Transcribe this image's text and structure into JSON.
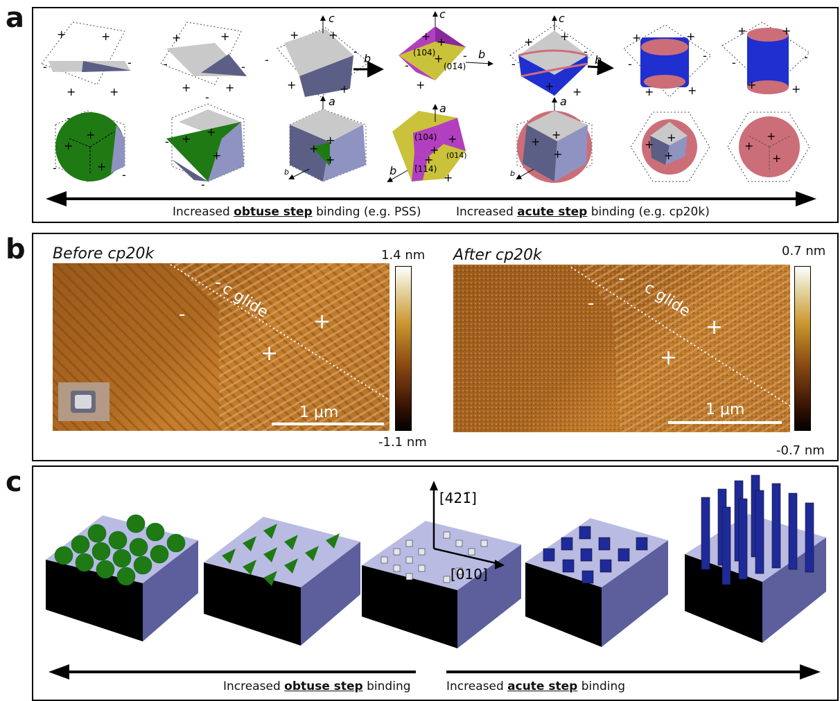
{
  "panels": {
    "a": {
      "letter": "a",
      "axes": {
        "c1": "c",
        "b1": "b",
        "c2": "c",
        "b2": "b",
        "c3": "c",
        "b3": "b",
        "a1": "a",
        "b4": "b",
        "a2": "a",
        "b5": "b",
        "a3": "a",
        "b6": "b"
      },
      "facets": {
        "f104_top": "(104)",
        "f014_top": "(01̄4)",
        "f104_bot": "(104)",
        "f014_bot": "(014̄)",
        "f114_bot": "(̄114)"
      },
      "caption_left": {
        "prefix": "Increased ",
        "bold": "obtuse step",
        "suffix": " binding (e.g. PSS)"
      },
      "caption_right": {
        "prefix": "Increased ",
        "bold": "acute step",
        "suffix": " binding (e.g. cp20k)"
      },
      "colors": {
        "grey": "#c9c9c9",
        "slate": "#5b5f86",
        "green": "#1f7a14",
        "lavender": "#8f93c2",
        "magenta": "#b23fc0",
        "olive": "#c9c23a",
        "blue": "#1f2fd0",
        "pink": "#cc6e78"
      }
    },
    "b": {
      "letter": "b",
      "left": {
        "title": "Before cp20k",
        "cmax": "1.4 nm",
        "cmin": "-1.1 nm",
        "glide": "c glide",
        "scale": "1 μm"
      },
      "right": {
        "title": "After cp20k",
        "cmax": "0.7 nm",
        "cmin": "-0.7 nm",
        "glide": "c glide",
        "scale": "1 μm"
      }
    },
    "c": {
      "letter": "c",
      "dir1": "[42̄ 1]",
      "dir1_text": "[421̄]",
      "dir2": "[010]",
      "caption_left": {
        "prefix": "Increased ",
        "bold": "obtuse step",
        "suffix": " binding"
      },
      "caption_right": {
        "prefix": "Increased ",
        "bold": "acute step",
        "suffix": " binding"
      }
    }
  }
}
